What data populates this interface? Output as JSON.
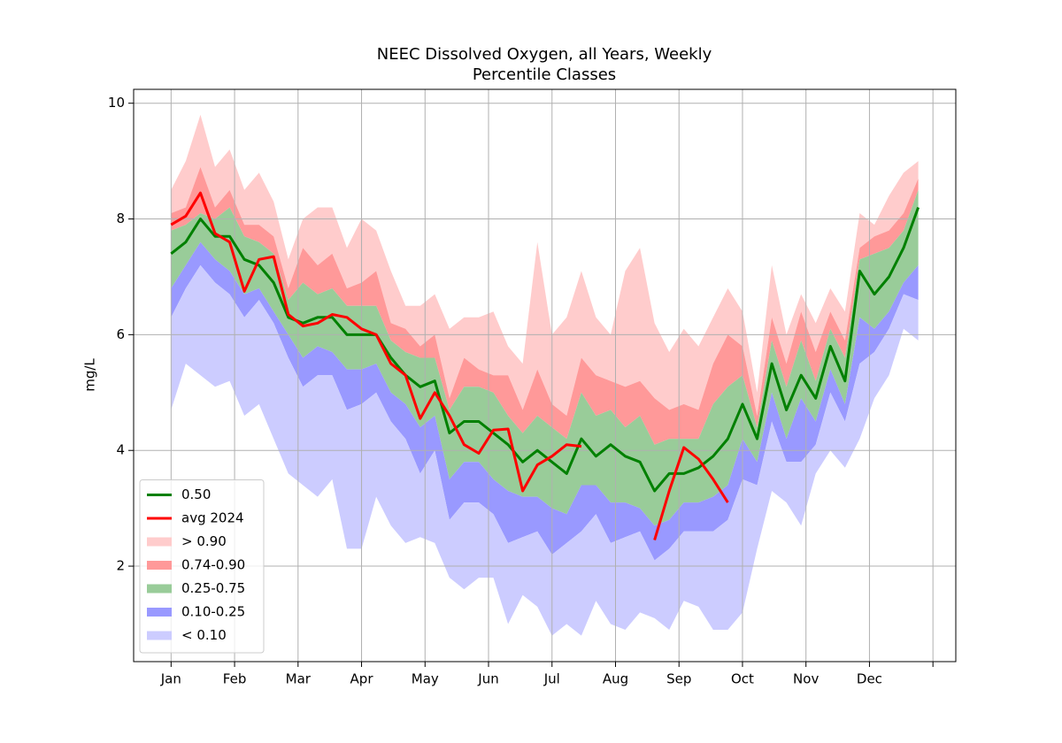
{
  "chart_data": {
    "type": "percentile_band",
    "title": "NEEC Dissolved Oxygen, all Years, Weekly",
    "subtitle": "Percentile Classes",
    "y_label": "mg/L",
    "xlim": [
      0.41,
      13.36
    ],
    "xticks": [
      {
        "value": 1,
        "label": "Jan"
      },
      {
        "value": 2,
        "label": "Feb"
      },
      {
        "value": 3,
        "label": "Mar"
      },
      {
        "value": 4,
        "label": "Apr"
      },
      {
        "value": 5,
        "label": "May"
      },
      {
        "value": 6,
        "label": "Jun"
      },
      {
        "value": 7,
        "label": "Jul"
      },
      {
        "value": 8,
        "label": "Aug"
      },
      {
        "value": 9,
        "label": "Sep"
      },
      {
        "value": 10,
        "label": "Oct"
      },
      {
        "value": 11,
        "label": "Nov"
      },
      {
        "value": 12,
        "label": "Dec"
      },
      {
        "value": 13,
        "label": null
      }
    ],
    "ylim": [
      0.35,
      10.24
    ],
    "yticks": [
      2,
      4,
      6,
      8,
      10
    ],
    "grid": true,
    "legend": "lower left",
    "x": [
      1,
      1.231,
      1.462,
      1.692,
      1.923,
      2.154,
      2.385,
      2.615,
      2.846,
      3.077,
      3.308,
      3.538,
      3.769,
      4.0,
      4.231,
      4.462,
      4.692,
      4.923,
      5.154,
      5.385,
      5.615,
      5.846,
      6.077,
      6.308,
      6.538,
      6.769,
      7.0,
      7.231,
      7.462,
      7.692,
      7.923,
      8.154,
      8.385,
      8.615,
      8.846,
      9.077,
      9.308,
      9.538,
      9.769,
      10.0,
      10.231,
      10.462,
      10.692,
      10.923,
      11.154,
      11.385,
      11.615,
      11.846,
      12.077,
      12.308,
      12.538,
      12.769
    ],
    "series": [
      {
        "name": "0.50",
        "color": "#008000",
        "values": [
          7.4,
          7.6,
          8.0,
          7.7,
          7.7,
          7.3,
          7.2,
          6.9,
          6.3,
          6.2,
          6.3,
          6.3,
          6.0,
          6.0,
          6.0,
          5.6,
          5.3,
          5.1,
          5.2,
          4.3,
          4.5,
          4.5,
          4.3,
          4.1,
          3.8,
          4.0,
          3.8,
          3.6,
          4.2,
          3.9,
          4.1,
          3.9,
          3.8,
          3.3,
          3.6,
          3.6,
          3.7,
          3.9,
          4.2,
          4.8,
          4.2,
          5.5,
          4.7,
          5.3,
          4.9,
          5.8,
          5.2,
          7.1,
          6.7,
          7.0,
          7.5,
          8.2
        ]
      },
      {
        "name": "avg 2024",
        "color": "#ff0000",
        "values": [
          7.9,
          8.05,
          8.45,
          7.75,
          7.6,
          6.75,
          7.3,
          7.35,
          6.35,
          6.15,
          6.2,
          6.35,
          6.3,
          6.1,
          6.0,
          5.5,
          5.3,
          4.55,
          5.0,
          4.6,
          4.1,
          3.95,
          4.35,
          4.37,
          3.3,
          3.75,
          3.9,
          4.1,
          4.07,
          null,
          null,
          null,
          null,
          2.45,
          3.3,
          4.05,
          3.85,
          3.5,
          3.1,
          null,
          null,
          null,
          null,
          null,
          null,
          null,
          null,
          null,
          null,
          null,
          null,
          null
        ]
      }
    ],
    "bands": [
      {
        "name": "> 0.90",
        "color": "#ffcccc",
        "lower": [
          8.1,
          8.2,
          8.9,
          8.2,
          8.5,
          7.9,
          7.9,
          7.7,
          6.8,
          7.5,
          7.2,
          7.4,
          6.8,
          6.9,
          7.1,
          6.2,
          6.1,
          5.8,
          6.0,
          4.9,
          5.6,
          5.4,
          5.3,
          5.3,
          4.7,
          5.4,
          4.8,
          4.6,
          5.6,
          5.3,
          5.2,
          5.1,
          5.2,
          4.9,
          4.7,
          4.8,
          4.7,
          5.5,
          6.0,
          5.8,
          4.6,
          6.3,
          5.5,
          6.4,
          5.7,
          6.4,
          5.9,
          7.5,
          7.7,
          7.8,
          8.1,
          8.7
        ],
        "upper": [
          8.5,
          9.0,
          9.8,
          8.9,
          9.2,
          8.5,
          8.8,
          8.3,
          7.3,
          8.0,
          8.2,
          8.2,
          7.5,
          8.0,
          7.8,
          7.1,
          6.5,
          6.5,
          6.7,
          6.1,
          6.3,
          6.3,
          6.4,
          5.8,
          5.5,
          7.6,
          6.0,
          6.3,
          7.1,
          6.3,
          6.0,
          7.1,
          7.5,
          6.2,
          5.7,
          6.1,
          5.8,
          6.3,
          6.8,
          6.4,
          5.0,
          7.2,
          6.0,
          6.7,
          6.2,
          6.8,
          6.4,
          8.1,
          7.9,
          8.4,
          8.8,
          9.0
        ]
      },
      {
        "name": "0.74-0.90",
        "color": "#ff9999",
        "lower": [
          7.8,
          7.9,
          8.1,
          8.0,
          8.2,
          7.7,
          7.6,
          7.4,
          6.6,
          6.9,
          6.7,
          6.8,
          6.5,
          6.5,
          6.5,
          5.9,
          5.7,
          5.6,
          5.6,
          4.7,
          5.1,
          5.1,
          5.0,
          4.6,
          4.3,
          4.6,
          4.4,
          4.2,
          5.0,
          4.6,
          4.7,
          4.4,
          4.6,
          4.1,
          4.2,
          4.2,
          4.2,
          4.8,
          5.1,
          5.3,
          4.4,
          5.9,
          5.1,
          5.9,
          5.2,
          6.1,
          5.6,
          7.3,
          7.4,
          7.5,
          7.8,
          8.5
        ],
        "upper": [
          8.1,
          8.2,
          8.9,
          8.2,
          8.5,
          7.9,
          7.9,
          7.7,
          6.8,
          7.5,
          7.2,
          7.4,
          6.8,
          6.9,
          7.1,
          6.2,
          6.1,
          5.8,
          6.0,
          4.9,
          5.6,
          5.4,
          5.3,
          5.3,
          4.7,
          5.4,
          4.8,
          4.6,
          5.6,
          5.3,
          5.2,
          5.1,
          5.2,
          4.9,
          4.7,
          4.8,
          4.7,
          5.5,
          6.0,
          5.8,
          4.6,
          6.3,
          5.5,
          6.4,
          5.7,
          6.4,
          5.9,
          7.5,
          7.7,
          7.8,
          8.1,
          8.7
        ]
      },
      {
        "name": "0.25-0.75",
        "color": "#99cc99",
        "lower": [
          6.8,
          7.2,
          7.6,
          7.3,
          7.1,
          6.7,
          6.8,
          6.4,
          6.0,
          5.6,
          5.8,
          5.7,
          5.4,
          5.4,
          5.5,
          5.0,
          4.8,
          4.4,
          4.6,
          3.5,
          3.8,
          3.8,
          3.5,
          3.3,
          3.2,
          3.2,
          3.0,
          2.9,
          3.4,
          3.4,
          3.1,
          3.1,
          3.0,
          2.7,
          2.8,
          3.1,
          3.1,
          3.2,
          3.4,
          4.2,
          3.8,
          5.0,
          4.2,
          4.9,
          4.5,
          5.4,
          4.8,
          6.3,
          6.1,
          6.4,
          6.9,
          7.2
        ],
        "upper": [
          7.8,
          7.9,
          8.1,
          8.0,
          8.2,
          7.7,
          7.6,
          7.4,
          6.6,
          6.9,
          6.7,
          6.8,
          6.5,
          6.5,
          6.5,
          5.9,
          5.7,
          5.6,
          5.6,
          4.7,
          5.1,
          5.1,
          5.0,
          4.6,
          4.3,
          4.6,
          4.4,
          4.2,
          5.0,
          4.6,
          4.7,
          4.4,
          4.6,
          4.1,
          4.2,
          4.2,
          4.2,
          4.8,
          5.1,
          5.3,
          4.4,
          5.9,
          5.1,
          5.9,
          5.2,
          6.1,
          5.6,
          7.3,
          7.4,
          7.5,
          7.8,
          8.5
        ]
      },
      {
        "name": "0.10-0.25",
        "color": "#9999ff",
        "lower": [
          6.3,
          6.8,
          7.2,
          6.9,
          6.7,
          6.3,
          6.6,
          6.2,
          5.6,
          5.1,
          5.3,
          5.3,
          4.7,
          4.8,
          5.0,
          4.5,
          4.2,
          3.6,
          4.0,
          2.8,
          3.1,
          3.1,
          2.9,
          2.4,
          2.5,
          2.6,
          2.2,
          2.4,
          2.6,
          2.9,
          2.4,
          2.5,
          2.6,
          2.1,
          2.3,
          2.6,
          2.6,
          2.6,
          2.8,
          3.5,
          3.4,
          4.5,
          3.8,
          3.8,
          4.1,
          5.0,
          4.5,
          5.5,
          5.7,
          6.1,
          6.7,
          6.6
        ],
        "upper": [
          6.8,
          7.2,
          7.6,
          7.3,
          7.1,
          6.7,
          6.8,
          6.4,
          6.0,
          5.6,
          5.8,
          5.7,
          5.4,
          5.4,
          5.5,
          5.0,
          4.8,
          4.4,
          4.6,
          3.5,
          3.8,
          3.8,
          3.5,
          3.3,
          3.2,
          3.2,
          3.0,
          2.9,
          3.4,
          3.4,
          3.1,
          3.1,
          3.0,
          2.7,
          2.8,
          3.1,
          3.1,
          3.2,
          3.4,
          4.2,
          3.8,
          5.0,
          4.2,
          4.9,
          4.5,
          5.4,
          4.8,
          6.3,
          6.1,
          6.4,
          6.9,
          7.2
        ]
      },
      {
        "name": "< 0.10",
        "color": "#ccccff",
        "lower": [
          4.7,
          5.5,
          5.3,
          5.1,
          5.2,
          4.6,
          4.8,
          4.2,
          3.6,
          3.4,
          3.2,
          3.5,
          2.3,
          2.3,
          3.2,
          2.7,
          2.4,
          2.5,
          2.4,
          1.8,
          1.6,
          1.8,
          1.8,
          1.0,
          1.5,
          1.3,
          0.8,
          1.0,
          0.8,
          1.4,
          1.0,
          0.9,
          1.2,
          1.1,
          0.9,
          1.4,
          1.3,
          0.9,
          0.9,
          1.2,
          2.3,
          3.3,
          3.1,
          2.7,
          3.6,
          4.0,
          3.7,
          4.2,
          4.9,
          5.3,
          6.1,
          5.9
        ],
        "upper": [
          6.3,
          6.8,
          7.2,
          6.9,
          6.7,
          6.3,
          6.6,
          6.2,
          5.6,
          5.1,
          5.3,
          5.3,
          4.7,
          4.8,
          5.0,
          4.5,
          4.2,
          3.6,
          4.0,
          2.8,
          3.1,
          3.1,
          2.9,
          2.4,
          2.5,
          2.6,
          2.2,
          2.4,
          2.6,
          2.9,
          2.4,
          2.5,
          2.6,
          2.1,
          2.3,
          2.6,
          2.6,
          2.6,
          2.8,
          3.5,
          3.4,
          4.5,
          3.8,
          3.8,
          4.1,
          5.0,
          4.5,
          5.5,
          5.7,
          6.1,
          6.7,
          6.6
        ]
      }
    ]
  }
}
